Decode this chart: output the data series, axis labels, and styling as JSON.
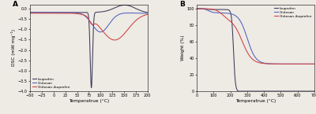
{
  "panel_A": {
    "title": "A",
    "xlabel": "Temperatrue (°C)",
    "ylabel": "DSC (mW mg⁻¹)",
    "xlim": [
      -50,
      200
    ],
    "ylim": [
      -4.0,
      0.2
    ],
    "yticks": [
      0.0,
      -0.5,
      -1.0,
      -1.5,
      -2.0,
      -2.5,
      -3.0,
      -3.5,
      -4.0
    ],
    "xticks": [
      -50,
      -25,
      0,
      25,
      50,
      75,
      100,
      125,
      150,
      175,
      200
    ],
    "colors": {
      "ibuprofen": "#3a3a5a",
      "chitosan": "#5060c0",
      "chitosan_ibuprofen": "#d04040"
    },
    "legend": [
      "Ibuprofen",
      "Chitosan",
      "Chitosan-ibuprofen"
    ]
  },
  "panel_B": {
    "title": "B",
    "xlabel": "Temperatrue (°C)",
    "ylabel": "Weight (%)",
    "xlim": [
      0,
      700
    ],
    "ylim": [
      0,
      105
    ],
    "yticks": [
      0,
      20,
      40,
      60,
      80,
      100
    ],
    "xticks": [
      0,
      100,
      200,
      300,
      400,
      500,
      600,
      700
    ],
    "colors": {
      "ibuprofen": "#3a3a5a",
      "chitosan": "#5060c0",
      "chitosan_ibuprofen": "#d04040"
    },
    "legend": [
      "Ibuprofen",
      "Chitosan",
      "Chitosan-ibuprofen"
    ]
  },
  "background_color": "#eeeae4",
  "figure_facecolor": "#eeeae4"
}
